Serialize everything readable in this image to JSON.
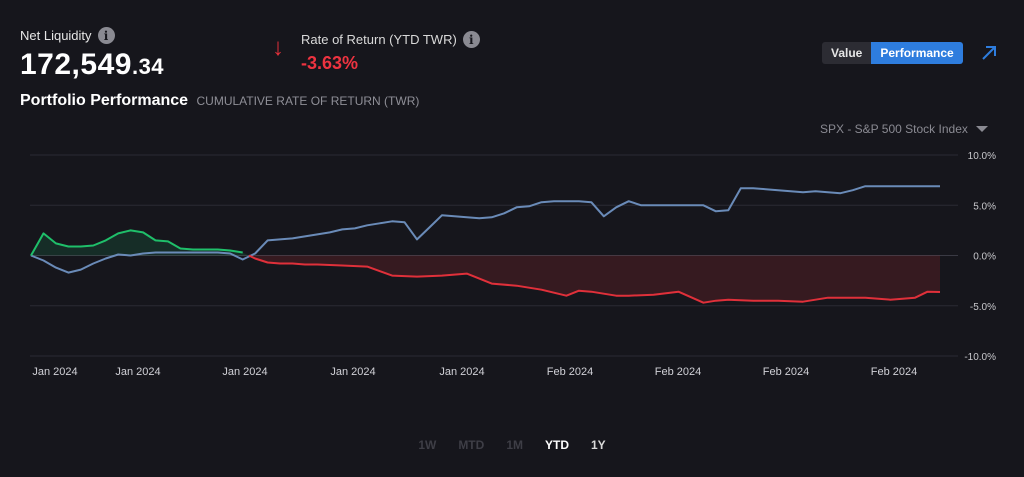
{
  "header": {
    "net_liquidity_label": "Net Liquidity",
    "net_liquidity_int": "172,549",
    "net_liquidity_dec": ".34",
    "rate_label": "Rate of Return (YTD TWR)",
    "rate_value": "-3.63%",
    "info_icon": "i",
    "down_arrow": "↓"
  },
  "title": {
    "main": "Portfolio Performance",
    "sub": "CUMULATIVE RATE OF RETURN (TWR)"
  },
  "toggle": {
    "value_label": "Value",
    "performance_label": "Performance",
    "active": "Performance"
  },
  "benchmark": {
    "label": "SPX - S&P 500 Stock Index",
    "icon": "caret-down-icon"
  },
  "ranges": [
    {
      "label": "1W",
      "state": "disabled"
    },
    {
      "label": "MTD",
      "state": "disabled"
    },
    {
      "label": "1M",
      "state": "disabled"
    },
    {
      "label": "YTD",
      "state": "active"
    },
    {
      "label": "1Y",
      "state": "normal"
    }
  ],
  "colors": {
    "portfolio_positive": "#1fbf6a",
    "portfolio_negative": "#e0303a",
    "benchmark": "#6a8bb8",
    "accent": "#2e7dde"
  },
  "chart_data": {
    "type": "line",
    "ylim": [
      -10,
      10
    ],
    "yticks": [
      10,
      5,
      0,
      -5,
      -10
    ],
    "ytick_labels": [
      "10.0%",
      "5.0%",
      "0.0%",
      "-5.0%",
      "-10.0%"
    ],
    "xtick_labels": [
      "Jan 2024",
      "Jan 2024",
      "Jan 2024",
      "Jan 2024",
      "Jan 2024",
      "Feb 2024",
      "Feb 2024",
      "Feb 2024",
      "Feb 2024"
    ],
    "x_count": 74,
    "series": [
      {
        "role": "portfolio",
        "x": [
          0,
          1,
          2,
          3,
          4,
          5,
          6,
          7,
          8,
          9,
          10,
          11,
          12,
          13,
          14,
          15,
          16,
          17,
          18,
          19,
          20,
          21,
          22,
          23,
          25,
          27,
          29,
          31,
          33,
          35,
          37,
          39,
          41,
          43,
          44,
          45,
          47,
          48,
          50,
          52,
          54,
          55,
          56,
          58,
          60,
          62,
          64,
          66,
          67,
          69,
          71,
          72,
          73
        ],
        "values": [
          0.0,
          2.2,
          1.2,
          0.9,
          0.9,
          1.0,
          1.5,
          2.2,
          2.5,
          2.3,
          1.5,
          1.4,
          0.7,
          0.6,
          0.6,
          0.6,
          0.5,
          0.3,
          -0.3,
          -0.7,
          -0.8,
          -0.8,
          -0.9,
          -0.9,
          -1.0,
          -1.1,
          -2.0,
          -2.1,
          -2.0,
          -1.8,
          -2.8,
          -3.0,
          -3.4,
          -4.0,
          -3.5,
          -3.6,
          -4.0,
          -4.0,
          -3.9,
          -3.6,
          -4.7,
          -4.5,
          -4.4,
          -4.5,
          -4.5,
          -4.6,
          -4.2,
          -4.2,
          -4.2,
          -4.4,
          -4.2,
          -3.6,
          -3.63
        ]
      },
      {
        "role": "benchmark",
        "x": [
          0,
          1,
          2,
          3,
          4,
          5,
          6,
          7,
          8,
          9,
          10,
          11,
          12,
          13,
          14,
          15,
          16,
          17,
          18,
          19,
          20,
          21,
          22,
          23,
          24,
          25,
          26,
          27,
          28,
          29,
          30,
          31,
          32,
          33,
          34,
          35,
          36,
          37,
          38,
          39,
          40,
          41,
          42,
          43,
          44,
          45,
          46,
          47,
          48,
          49,
          50,
          51,
          52,
          53,
          54,
          55,
          56,
          57,
          58,
          59,
          60,
          61,
          62,
          63,
          64,
          65,
          66,
          67,
          68,
          69,
          70,
          71,
          72,
          73
        ],
        "values": [
          0.0,
          -0.5,
          -1.2,
          -1.7,
          -1.4,
          -0.8,
          -0.3,
          0.1,
          0.0,
          0.2,
          0.3,
          0.3,
          0.3,
          0.3,
          0.3,
          0.3,
          0.2,
          -0.4,
          0.2,
          1.5,
          1.6,
          1.7,
          1.9,
          2.1,
          2.3,
          2.6,
          2.7,
          3.0,
          3.2,
          3.4,
          3.3,
          1.6,
          2.8,
          4.0,
          3.9,
          3.8,
          3.7,
          3.8,
          4.2,
          4.8,
          4.9,
          5.3,
          5.4,
          5.4,
          5.4,
          5.3,
          3.9,
          4.8,
          5.4,
          5.0,
          5.0,
          5.0,
          5.0,
          5.0,
          5.0,
          4.4,
          4.5,
          6.7,
          6.7,
          6.6,
          6.5,
          6.4,
          6.3,
          6.4,
          6.3,
          6.2,
          6.5,
          6.9,
          6.9,
          6.9,
          6.9,
          6.9,
          6.9,
          6.9
        ]
      }
    ]
  }
}
